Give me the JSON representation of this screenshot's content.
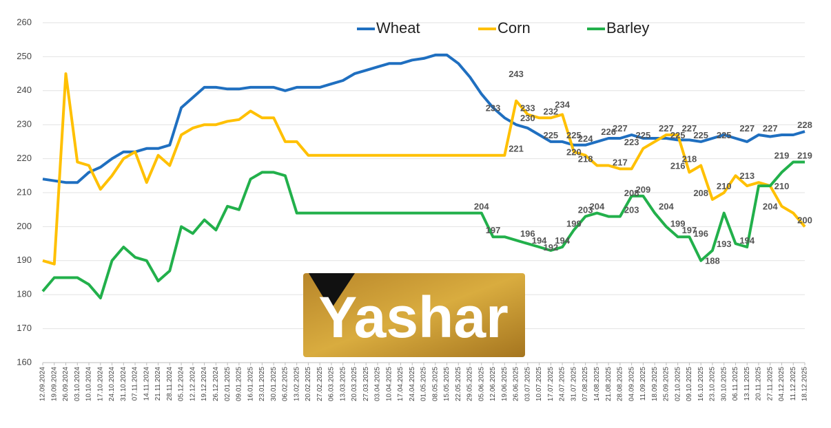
{
  "chart_data": {
    "type": "line",
    "categories": [
      "12.09.2024",
      "19.09.2024",
      "26.09.2024",
      "03.10.2024",
      "10.10.2024",
      "17.10.2024",
      "24.10.2024",
      "31.10.2024",
      "07.11.2024",
      "14.11.2024",
      "21.11.2024",
      "28.11.2024",
      "05.12.2024",
      "12.12.2024",
      "19.12.2024",
      "26.12.2024",
      "02.01.2025",
      "09.01.2025",
      "16.01.2025",
      "23.01.2025",
      "30.01.2025",
      "06.02.2025",
      "13.02.2025",
      "20.02.2025",
      "27.02.2025",
      "06.03.2025",
      "13.03.2025",
      "20.03.2025",
      "27.03.2025",
      "03.04.2025",
      "10.04.2025",
      "17.04.2025",
      "24.04.2025",
      "01.05.2025",
      "08.05.2025",
      "15.05.2025",
      "22.05.2025",
      "29.05.2025",
      "05.06.2025",
      "12.06.2025",
      "19.06.2025",
      "26.06.2025",
      "03.07.2025",
      "10.07.2025",
      "17.07.2025",
      "24.07.2025",
      "31.07.2025",
      "07.08.2025",
      "14.08.2025",
      "21.08.2025",
      "28.08.2025",
      "04.09.2025",
      "11.09.2025",
      "18.09.2025",
      "25.09.2025",
      "02.10.2025",
      "09.10.2025",
      "16.10.2025",
      "23.10.2025",
      "30.10.2025",
      "06.11.2025",
      "13.11.2025",
      "20.11.2025",
      "27.11.2025",
      "04.12.2025",
      "11.12.2025",
      "18.12.2025"
    ],
    "series": [
      {
        "name": "Wheat",
        "color": "#1f6fc0",
        "values": [
          214,
          213.5,
          213,
          213,
          216,
          217.5,
          220,
          222,
          222,
          223,
          223,
          224,
          235,
          238,
          241,
          241,
          240.5,
          240.5,
          241,
          241,
          241,
          240,
          241,
          241,
          241,
          242,
          243,
          245,
          246,
          247,
          248,
          248,
          249,
          249.5,
          250.5,
          250.5,
          248,
          244,
          239,
          235,
          232,
          230,
          229,
          227,
          225,
          225,
          224,
          224,
          225,
          226,
          226,
          227,
          226,
          226,
          226,
          225.5,
          225.5,
          225,
          226,
          227,
          226,
          225,
          227,
          226.5,
          227,
          227,
          228
        ]
      },
      {
        "name": "Corn",
        "color": "#ffc000",
        "values": [
          190,
          189,
          245,
          219,
          218,
          211,
          215,
          220,
          222,
          213,
          221,
          218,
          227,
          229,
          230,
          230,
          231,
          231.5,
          234,
          232,
          232,
          225,
          225,
          221,
          221,
          221,
          221,
          221,
          221,
          221,
          221,
          221,
          221,
          221,
          221,
          221,
          221,
          221,
          221,
          221,
          221,
          237,
          233,
          232,
          232,
          233,
          222,
          221,
          218,
          218,
          217,
          217,
          223,
          225,
          227,
          227,
          216,
          218,
          208,
          210,
          215,
          212,
          213,
          212,
          206,
          204,
          200
        ]
      },
      {
        "name": "Barley",
        "color": "#22b04b",
        "values": [
          181,
          185,
          185,
          185,
          183,
          179,
          190,
          194,
          191,
          190,
          184,
          187,
          200,
          198,
          202,
          199,
          206,
          205,
          214,
          216,
          216,
          215,
          204,
          204,
          204,
          204,
          204,
          204,
          204,
          204,
          204,
          204,
          204,
          204,
          204,
          204,
          204,
          204,
          204,
          197,
          197,
          196,
          195,
          194,
          193,
          194,
          199,
          203,
          204,
          203,
          203,
          209,
          209,
          204,
          200,
          197,
          197,
          190,
          193,
          204,
          195,
          194,
          212,
          212,
          216,
          219,
          219
        ]
      }
    ],
    "annotations": [
      {
        "x": "26.06.2025",
        "value": 243
      },
      {
        "x": "12.06.2025",
        "value": 233
      },
      {
        "x": "03.07.2025",
        "value": 233
      },
      {
        "x": "03.07.2025",
        "value": 230
      },
      {
        "x": "26.06.2025",
        "value": 221
      },
      {
        "x": "17.07.2025",
        "value": 232
      },
      {
        "x": "24.07.2025",
        "value": 234
      },
      {
        "x": "17.07.2025",
        "value": 225
      },
      {
        "x": "31.07.2025",
        "value": 225
      },
      {
        "x": "07.08.2025",
        "value": 224
      },
      {
        "x": "31.07.2025",
        "value": 220
      },
      {
        "x": "07.08.2025",
        "value": 218
      },
      {
        "x": "21.08.2025",
        "value": 226
      },
      {
        "x": "28.08.2025",
        "value": 227
      },
      {
        "x": "04.09.2025",
        "value": 223
      },
      {
        "x": "11.09.2025",
        "value": 225
      },
      {
        "x": "28.08.2025",
        "value": 217
      },
      {
        "x": "25.09.2025",
        "value": 227
      },
      {
        "x": "02.10.2025",
        "value": 225
      },
      {
        "x": "09.10.2025",
        "value": 227
      },
      {
        "x": "16.10.2025",
        "value": 225
      },
      {
        "x": "02.10.2025",
        "value": 216
      },
      {
        "x": "09.10.2025",
        "value": 218
      },
      {
        "x": "30.10.2025",
        "value": 225
      },
      {
        "x": "13.11.2025",
        "value": 227
      },
      {
        "x": "27.11.2025",
        "value": 227
      },
      {
        "x": "18.12.2025",
        "value": 228
      },
      {
        "x": "04.12.2025",
        "value": 219
      },
      {
        "x": "18.12.2025",
        "value": 219
      },
      {
        "x": "13.11.2025",
        "value": 213
      },
      {
        "x": "30.10.2025",
        "value": 210
      },
      {
        "x": "16.10.2025",
        "value": 208
      },
      {
        "x": "04.12.2025",
        "value": 210
      },
      {
        "x": "27.11.2025",
        "value": 204
      },
      {
        "x": "18.12.2025",
        "value": 200
      },
      {
        "x": "05.06.2025",
        "value": 204
      },
      {
        "x": "12.06.2025",
        "value": 197
      },
      {
        "x": "03.07.2025",
        "value": 196
      },
      {
        "x": "10.07.2025",
        "value": 194
      },
      {
        "x": "17.07.2025",
        "value": 192
      },
      {
        "x": "24.07.2025",
        "value": 194
      },
      {
        "x": "31.07.2025",
        "value": 199
      },
      {
        "x": "07.08.2025",
        "value": 203
      },
      {
        "x": "14.08.2025",
        "value": 204
      },
      {
        "x": "04.09.2025",
        "value": 208
      },
      {
        "x": "04.09.2025",
        "value": 203
      },
      {
        "x": "11.09.2025",
        "value": 209
      },
      {
        "x": "25.09.2025",
        "value": 204
      },
      {
        "x": "02.10.2025",
        "value": 199
      },
      {
        "x": "09.10.2025",
        "value": 197
      },
      {
        "x": "16.10.2025",
        "value": 196
      },
      {
        "x": "30.10.2025",
        "value": 193
      },
      {
        "x": "23.10.2025",
        "value": 188
      },
      {
        "x": "13.11.2025",
        "value": 194
      }
    ],
    "ylim": [
      160,
      260
    ],
    "yticks": [
      160,
      170,
      180,
      190,
      200,
      210,
      220,
      230,
      240,
      250,
      260
    ],
    "grid": true,
    "legend": "top"
  },
  "logo": "Yashar"
}
